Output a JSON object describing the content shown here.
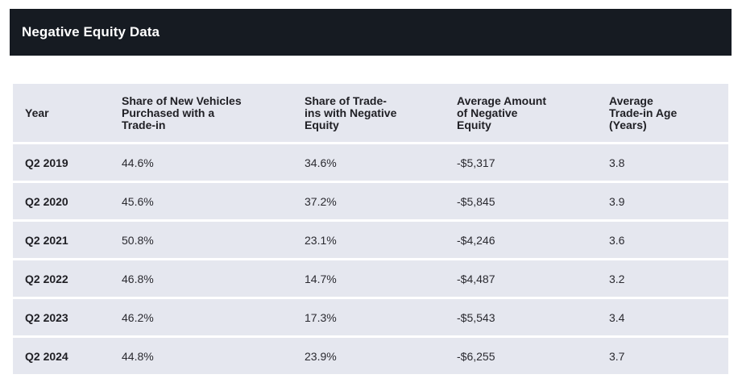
{
  "header": {
    "title": "Negative Equity Data"
  },
  "table": {
    "columns": [
      "Year",
      "Share of New Vehicles Purchased with a Trade-in",
      "Share of Trade-ins with Negative Equity",
      "Average Amount of Negative Equity",
      "Average Trade-in Age (Years)"
    ],
    "rows": [
      [
        "Q2 2019",
        "44.6%",
        "34.6%",
        "-$5,317",
        "3.8"
      ],
      [
        "Q2 2020",
        "45.6%",
        "37.2%",
        "-$5,845",
        "3.9"
      ],
      [
        "Q2 2021",
        "50.8%",
        "23.1%",
        "-$4,246",
        "3.6"
      ],
      [
        "Q2 2022",
        "46.8%",
        "14.7%",
        "-$4,487",
        "3.2"
      ],
      [
        "Q2 2023",
        "46.2%",
        "17.3%",
        "-$5,543",
        "3.4"
      ],
      [
        "Q2 2024",
        "44.8%",
        "23.9%",
        "-$6,255",
        "3.7"
      ]
    ]
  },
  "colors": {
    "header_bar": "#161b22",
    "row_background": "#e5e7ef",
    "title_text": "#ffffff"
  }
}
